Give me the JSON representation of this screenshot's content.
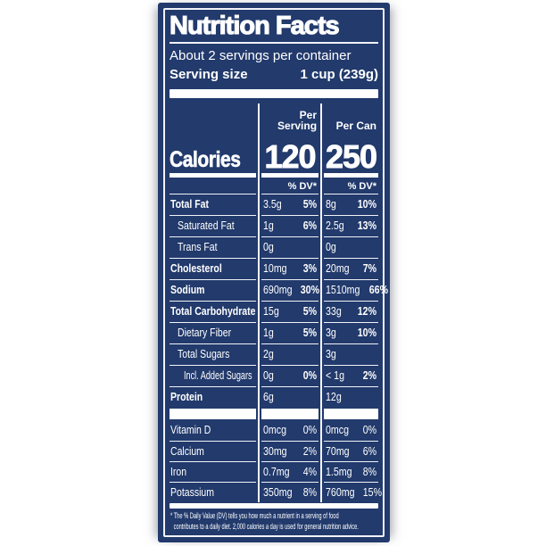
{
  "colors": {
    "label_background": "#223a6c",
    "text_and_lines": "#ffffff"
  },
  "label": {
    "title": "Nutrition Facts",
    "servings_per_container": "About 2 servings per container",
    "serving_size_label": "Serving size",
    "serving_size_value": "1 cup (239g)",
    "calories": {
      "label": "Calories",
      "col_serving_header": "Per Serving",
      "col_can_header": "Per Can",
      "per_serving": "120",
      "per_can": "250",
      "dv_header": "% DV*"
    },
    "rows": [
      {
        "label": "Total Fat",
        "serving": {
          "amount": "3.5g",
          "dv": "5%"
        },
        "can": {
          "amount": "8g",
          "dv": "10%"
        }
      },
      {
        "label": "Saturated Fat",
        "serving": {
          "amount": "1g",
          "dv": "6%"
        },
        "can": {
          "amount": "2.5g",
          "dv": "13%"
        }
      },
      {
        "label": "Trans Fat",
        "serving": {
          "amount": "0g",
          "dv": ""
        },
        "can": {
          "amount": "0g",
          "dv": ""
        }
      },
      {
        "label": "Cholesterol",
        "serving": {
          "amount": "10mg",
          "dv": "3%"
        },
        "can": {
          "amount": "20mg",
          "dv": "7%"
        }
      },
      {
        "label": "Sodium",
        "serving": {
          "amount": "690mg",
          "dv": "30%"
        },
        "can": {
          "amount": "1510mg",
          "dv": "66%"
        }
      },
      {
        "label": "Total Carbohydrate",
        "serving": {
          "amount": "15g",
          "dv": "5%"
        },
        "can": {
          "amount": "33g",
          "dv": "12%"
        }
      },
      {
        "label": "Dietary Fiber",
        "serving": {
          "amount": "1g",
          "dv": "5%"
        },
        "can": {
          "amount": "3g",
          "dv": "10%"
        }
      },
      {
        "label": "Total Sugars",
        "serving": {
          "amount": "2g",
          "dv": ""
        },
        "can": {
          "amount": "3g",
          "dv": ""
        }
      },
      {
        "label": "Incl. Added Sugars",
        "serving": {
          "amount": "0g",
          "dv": "0%"
        },
        "can": {
          "amount": "< 1g",
          "dv": "2%"
        }
      },
      {
        "label": "Protein",
        "serving": {
          "amount": "6g",
          "dv": ""
        },
        "can": {
          "amount": "12g",
          "dv": ""
        }
      }
    ],
    "vitamin_rows": [
      {
        "label": "Vitamin D",
        "serving": {
          "amount": "0mcg",
          "dv": "0%"
        },
        "can": {
          "amount": "0mcg",
          "dv": "0%"
        }
      },
      {
        "label": "Calcium",
        "serving": {
          "amount": "30mg",
          "dv": "2%"
        },
        "can": {
          "amount": "70mg",
          "dv": "6%"
        }
      },
      {
        "label": "Iron",
        "serving": {
          "amount": "0.7mg",
          "dv": "4%"
        },
        "can": {
          "amount": "1.5mg",
          "dv": "8%"
        }
      },
      {
        "label": "Potassium",
        "serving": {
          "amount": "350mg",
          "dv": "8%"
        },
        "can": {
          "amount": "760mg",
          "dv": "15%"
        }
      }
    ],
    "footnote_lines": [
      "* The % Daily Value (DV) tells you how much a nutrient in a serving of food",
      "contributes to a daily diet. 2,000 calories a day is used for general nutrition advice."
    ]
  }
}
